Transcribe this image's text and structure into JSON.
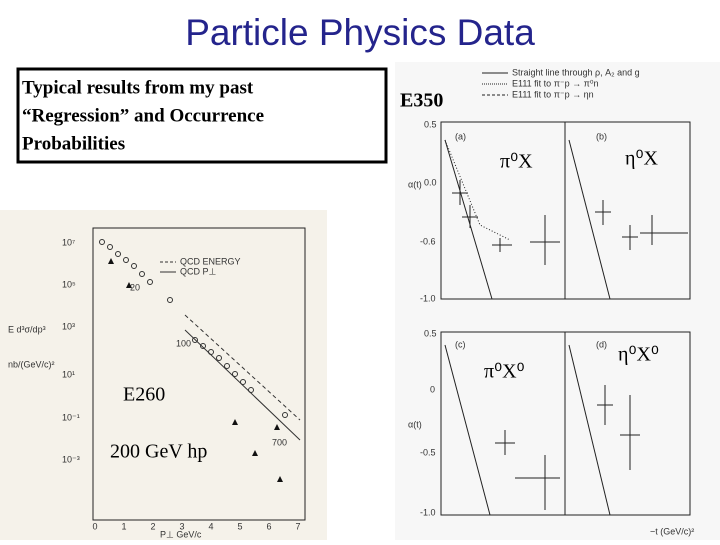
{
  "title": "Particle Physics Data",
  "textbox": {
    "lines": [
      "Typical results from my past",
      "“Regression” and Occurrence",
      "Probabilities"
    ]
  },
  "left_plot": {
    "experiment": "E260",
    "beam": "200 GeV hp",
    "y_ticks": [
      "10⁷",
      "10⁵",
      "10³",
      "10¹",
      "10⁻¹",
      "10⁻³"
    ],
    "x_ticks": [
      "0",
      "1",
      "2",
      "3",
      "4",
      "5",
      "6",
      "7"
    ],
    "x_label": "P⊥  GeV/c",
    "y_label_top": "E d³σ/dp³",
    "y_label_bottom": "nb/(GeV/c)²",
    "legend": [
      "QCD ENERGY",
      "QCD P⊥"
    ],
    "annotations": [
      "20",
      "100",
      "700"
    ]
  },
  "right_plot": {
    "experiment": "E350",
    "legend": [
      "Straight line through ρ, A₂ and g",
      "E111 fit to π⁻p → π⁰n",
      "E111 fit to π⁻p → ηn"
    ],
    "panels": [
      {
        "tag": "(a)",
        "label": "π⁰X"
      },
      {
        "tag": "(b)",
        "label": "η⁰X"
      },
      {
        "tag": "(c)",
        "label": "π⁰X⁰"
      },
      {
        "tag": "(d)",
        "label": "η⁰X⁰"
      }
    ],
    "y_ticks_top": [
      "0.5",
      "0.0",
      "-0.6",
      "-1.0"
    ],
    "y_ticks_bottom": [
      "0.5",
      "0",
      "-0.5",
      "-1.0"
    ],
    "y_label": "α(t)",
    "x_label": "−t (GeV/c)²"
  }
}
